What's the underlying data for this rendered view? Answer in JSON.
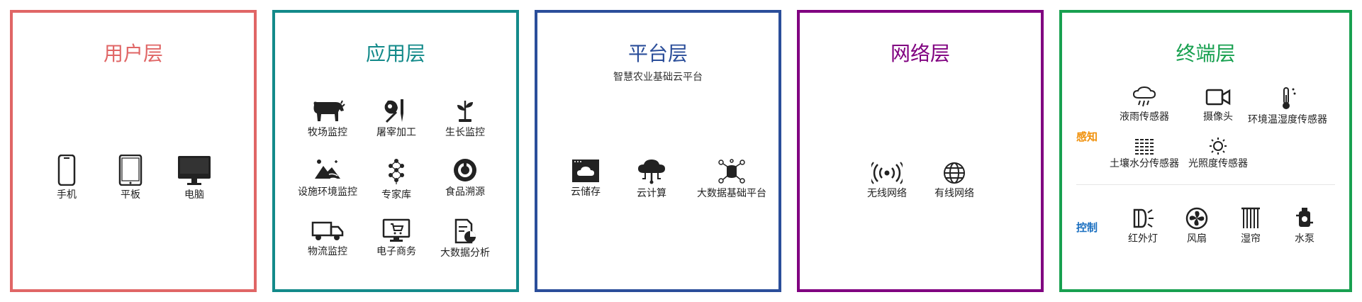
{
  "colors": {
    "user": "#e06666",
    "app": "#138a8a",
    "platform": "#2b4e9a",
    "network": "#800080",
    "terminal": "#18a050",
    "sense": "#f0900a",
    "control": "#1a6fc0"
  },
  "user_layer": {
    "title": "用户层",
    "items": [
      {
        "label": "手机",
        "icon": "phone-icon"
      },
      {
        "label": "平板",
        "icon": "tablet-icon"
      },
      {
        "label": "电脑",
        "icon": "computer-icon"
      }
    ]
  },
  "app_layer": {
    "title": "应用层",
    "items": [
      {
        "label": "牧场监控",
        "icon": "cow-icon"
      },
      {
        "label": "屠宰加工",
        "icon": "meat-knife-icon"
      },
      {
        "label": "生长监控",
        "icon": "sprout-icon"
      },
      {
        "label": "设施环境监控",
        "icon": "environment-icon"
      },
      {
        "label": "专家库",
        "icon": "expert-network-icon"
      },
      {
        "label": "食品溯源",
        "icon": "traceability-icon"
      },
      {
        "label": "物流监控",
        "icon": "truck-icon"
      },
      {
        "label": "电子商务",
        "icon": "ecommerce-monitor-icon"
      },
      {
        "label": "大数据分析",
        "icon": "data-report-icon"
      }
    ]
  },
  "platform_layer": {
    "title": "平台层",
    "subtitle": "智慧农业基础云平台",
    "items": [
      {
        "label": "云储存",
        "icon": "cloud-storage-icon"
      },
      {
        "label": "云计算",
        "icon": "cloud-compute-icon"
      },
      {
        "label": "大数据基础平台",
        "icon": "database-network-icon"
      }
    ]
  },
  "network_layer": {
    "title": "网络层",
    "items": [
      {
        "label": "无线网络",
        "icon": "wireless-icon"
      },
      {
        "label": "有线网络",
        "icon": "globe-icon"
      }
    ]
  },
  "terminal_layer": {
    "title": "终端层",
    "sense_label": "感知",
    "control_label": "控制",
    "sense_items": [
      {
        "label": "液雨传感器",
        "icon": "rain-cloud-icon"
      },
      {
        "label": "摄像头",
        "icon": "camera-icon"
      },
      {
        "label": "环境温湿度传感器",
        "icon": "thermometer-icon"
      },
      {
        "label": "土壤水分传感器",
        "icon": "soil-moisture-icon"
      },
      {
        "label": "光照度传感器",
        "icon": "sun-icon"
      }
    ],
    "control_items": [
      {
        "label": "红外灯",
        "icon": "infrared-lamp-icon"
      },
      {
        "label": "风扇",
        "icon": "fan-icon"
      },
      {
        "label": "湿帘",
        "icon": "wet-curtain-icon"
      },
      {
        "label": "水泵",
        "icon": "water-pump-icon"
      }
    ]
  }
}
